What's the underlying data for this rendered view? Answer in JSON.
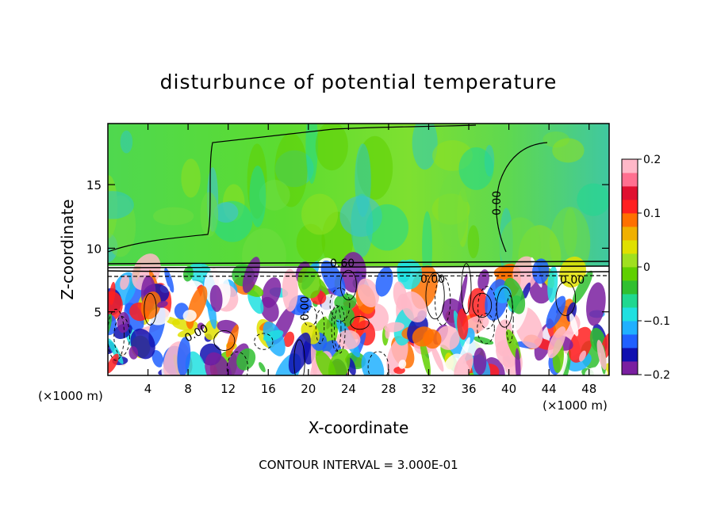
{
  "chart_data": {
    "type": "heatmap",
    "title": "disturbunce of potential temperature",
    "xlabel": "X-coordinate",
    "ylabel": "Z-coordinate",
    "x_unit": "(×1000 m)",
    "x_ticks": [
      "4",
      "8",
      "12",
      "16",
      "20",
      "24",
      "28",
      "32",
      "36",
      "40",
      "44",
      "48"
    ],
    "y_ticks": [
      "5",
      "10",
      "15"
    ],
    "xlim": [
      0,
      50
    ],
    "ylim": [
      0,
      19.8
    ],
    "colorbar": {
      "ticks": [
        "0.2",
        "0.1",
        "0",
        "−0.1",
        "−0.2"
      ],
      "range": [
        -0.2,
        0.2
      ],
      "colors": [
        "#7a1fa0",
        "#1010b0",
        "#2060ff",
        "#20b0ff",
        "#20e0e0",
        "#20d890",
        "#30c030",
        "#60d000",
        "#a0e020",
        "#e0e000",
        "#f0b000",
        "#ff7000",
        "#ff2020",
        "#e01030",
        "#ff7090",
        "#ffb8c8"
      ]
    },
    "contour_labels": [
      "0.60",
      "0.00",
      "0.00",
      "0.00",
      "0.00",
      "0.00"
    ],
    "note": "CONTOUR INTERVAL = 3.000E-01",
    "grid": false
  }
}
